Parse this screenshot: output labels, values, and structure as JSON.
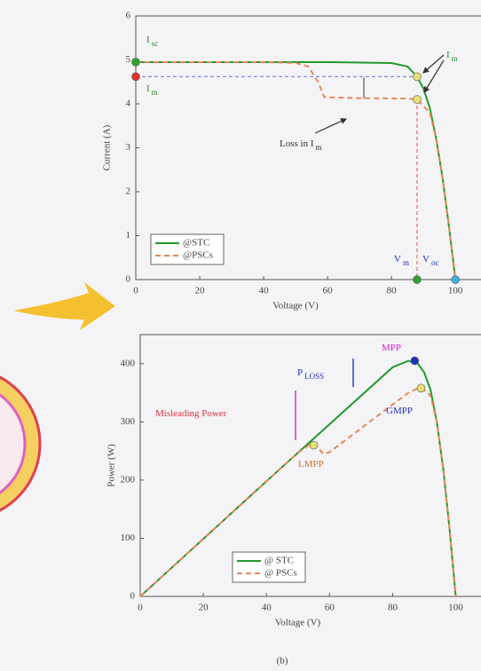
{
  "chart_data": [
    {
      "type": "line",
      "xlabel": "Voltage (V)",
      "ylabel": "Current (A)",
      "xlim": [
        0,
        108
      ],
      "ylim": [
        0,
        6
      ],
      "xticks": [
        0,
        20,
        40,
        60,
        80,
        100
      ],
      "yticks": [
        0,
        1,
        2,
        3,
        4,
        5,
        6
      ],
      "series": [
        {
          "name": "@STC",
          "color": "#1f9a2a",
          "dash": "solid",
          "x": [
            0,
            20,
            40,
            60,
            80,
            85,
            88,
            90,
            92,
            94,
            96,
            98,
            100
          ],
          "values": [
            4.95,
            4.95,
            4.95,
            4.95,
            4.93,
            4.85,
            4.62,
            4.35,
            3.9,
            3.2,
            2.3,
            1.2,
            0
          ]
        },
        {
          "name": "@PSCs",
          "color": "#e8875a",
          "dash": "dashed",
          "x": [
            0,
            20,
            40,
            50,
            54,
            57,
            59,
            70,
            85,
            88,
            90,
            92,
            94,
            96,
            98,
            100
          ],
          "values": [
            4.95,
            4.95,
            4.95,
            4.93,
            4.85,
            4.5,
            4.15,
            4.13,
            4.12,
            4.1,
            3.95,
            3.8,
            3.2,
            2.3,
            1.2,
            0
          ]
        }
      ],
      "markers": [
        {
          "x": 0,
          "y": 4.95,
          "color": "#2aa52a"
        },
        {
          "x": 0,
          "y": 4.62,
          "color": "#e03030"
        },
        {
          "x": 88,
          "y": 4.62,
          "color": "#e8e070"
        },
        {
          "x": 88,
          "y": 4.1,
          "color": "#e8e070"
        },
        {
          "x": 88,
          "y": 0,
          "color": "#2aa52a"
        },
        {
          "x": 100,
          "y": 0,
          "color": "#40b0e0"
        }
      ],
      "annotations": [
        {
          "text": "I",
          "sub": "sc",
          "color": "#2a8a2a"
        },
        {
          "text": "I",
          "sub": "m",
          "color": "#2a8a2a"
        },
        {
          "text": "I",
          "sub": "m",
          "color": "#2a8a2a"
        },
        {
          "text": "Loss in I",
          "sub": "m",
          "color": "#333333"
        },
        {
          "text": "V",
          "sub": "m",
          "color": "#2030c0"
        },
        {
          "text": "V",
          "sub": "oc",
          "color": "#2030c0"
        }
      ]
    },
    {
      "type": "line",
      "xlabel": "Voltage (V)",
      "ylabel": "Power (W)",
      "xlim": [
        0,
        108
      ],
      "ylim": [
        0,
        450
      ],
      "xticks": [
        0,
        20,
        40,
        60,
        80,
        100
      ],
      "yticks": [
        0,
        100,
        200,
        300,
        400
      ],
      "series": [
        {
          "name": "@ STC",
          "color": "#1f9a2a",
          "dash": "solid",
          "x": [
            0,
            20,
            40,
            60,
            80,
            85,
            88,
            90,
            92,
            94,
            96,
            98,
            100
          ],
          "values": [
            0,
            99,
            198,
            296,
            394,
            405,
            400,
            385,
            355,
            300,
            221,
            118,
            0
          ]
        },
        {
          "name": "@ PSCs",
          "color": "#e8875a",
          "dash": "dashed",
          "x": [
            0,
            20,
            40,
            50,
            54,
            56,
            58,
            60,
            70,
            80,
            85,
            88,
            90,
            92,
            94,
            96,
            98,
            100
          ],
          "values": [
            0,
            99,
            198,
            247,
            262,
            258,
            245,
            248,
            289,
            330,
            350,
            358,
            355,
            345,
            300,
            221,
            118,
            0
          ]
        }
      ],
      "markers": [
        {
          "x": 87,
          "y": 405,
          "color": "#2030c0"
        },
        {
          "x": 89,
          "y": 358,
          "color": "#e8e070"
        },
        {
          "x": 55,
          "y": 260,
          "color": "#e8e070"
        }
      ],
      "annotations": [
        {
          "text": "MPP",
          "sub": null,
          "color": "#d020d0"
        },
        {
          "text": "P",
          "sub": "LOSS",
          "color": "#2030c0"
        },
        {
          "text": "Misleading Power",
          "sub": null,
          "color": "#e03040"
        },
        {
          "text": "GMPP",
          "sub": null,
          "color": "#2030c0"
        },
        {
          "text": "LMPP",
          "sub": null,
          "color": "#d07030"
        }
      ]
    }
  ],
  "caption": "(b)"
}
